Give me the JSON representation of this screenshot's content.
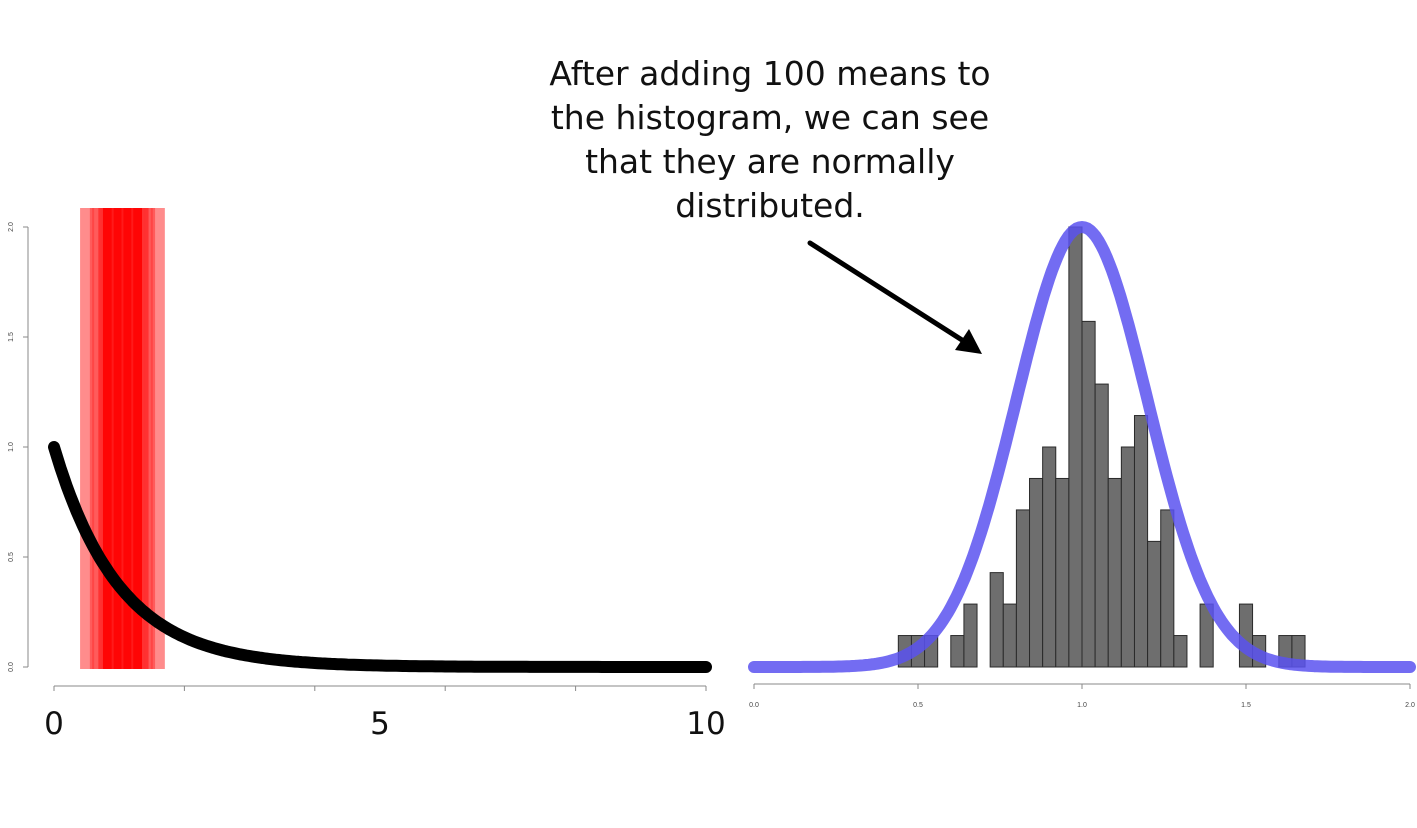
{
  "annotation": {
    "lines": [
      "After adding 100 means to",
      "the histogram, we can see",
      "that they are normally",
      "distributed."
    ]
  },
  "colors": {
    "curve_left": "#000000",
    "sample_band": "#ff0000",
    "curve_right": "#5b52f0",
    "histogram_bar": "#6e6e6e",
    "arrow": "#000000"
  },
  "chart_data": [
    {
      "type": "line",
      "title": "",
      "xlabel": "",
      "ylabel": "",
      "xlim": [
        0,
        10
      ],
      "ylim": [
        0,
        2
      ],
      "x_tick_labels": [
        "0",
        "5",
        "10"
      ],
      "y_tick_labels": [
        "0.0",
        "0.5",
        "1.0",
        "1.5",
        "2.0"
      ],
      "curve": {
        "function": "exponential density",
        "rate": 1,
        "x_range": [
          0,
          10
        ]
      },
      "sample_band": {
        "x_range": [
          0.4,
          1.7
        ],
        "dense_range": [
          0.75,
          1.35
        ]
      },
      "grid": false,
      "legend": "none"
    },
    {
      "type": "bar",
      "title": "",
      "xlabel": "",
      "ylabel": "",
      "xlim": [
        0,
        2
      ],
      "ylim": [
        0,
        2
      ],
      "x_tick_labels": [
        "0.0",
        "0.5",
        "1.0",
        "1.5",
        "2.0"
      ],
      "bin_width": 0.04,
      "bins_start": [
        0.44,
        0.48,
        0.52,
        0.6,
        0.64,
        0.72,
        0.76,
        0.8,
        0.84,
        0.88,
        0.92,
        0.96,
        1.0,
        1.04,
        1.08,
        1.12,
        1.16,
        1.2,
        1.24,
        1.28,
        1.36,
        1.48,
        1.52,
        1.6,
        1.64
      ],
      "density": [
        0.143,
        0.143,
        0.143,
        0.143,
        0.286,
        0.429,
        0.286,
        0.714,
        0.857,
        1.0,
        0.857,
        2.0,
        1.571,
        1.286,
        0.857,
        1.0,
        1.143,
        0.571,
        0.714,
        0.143,
        0.286,
        0.286,
        0.143,
        0.143,
        0.143
      ],
      "normal_curve": {
        "mean": 1.0,
        "sd": 0.2,
        "peak": 2.0
      },
      "grid": false,
      "legend": "none"
    }
  ]
}
